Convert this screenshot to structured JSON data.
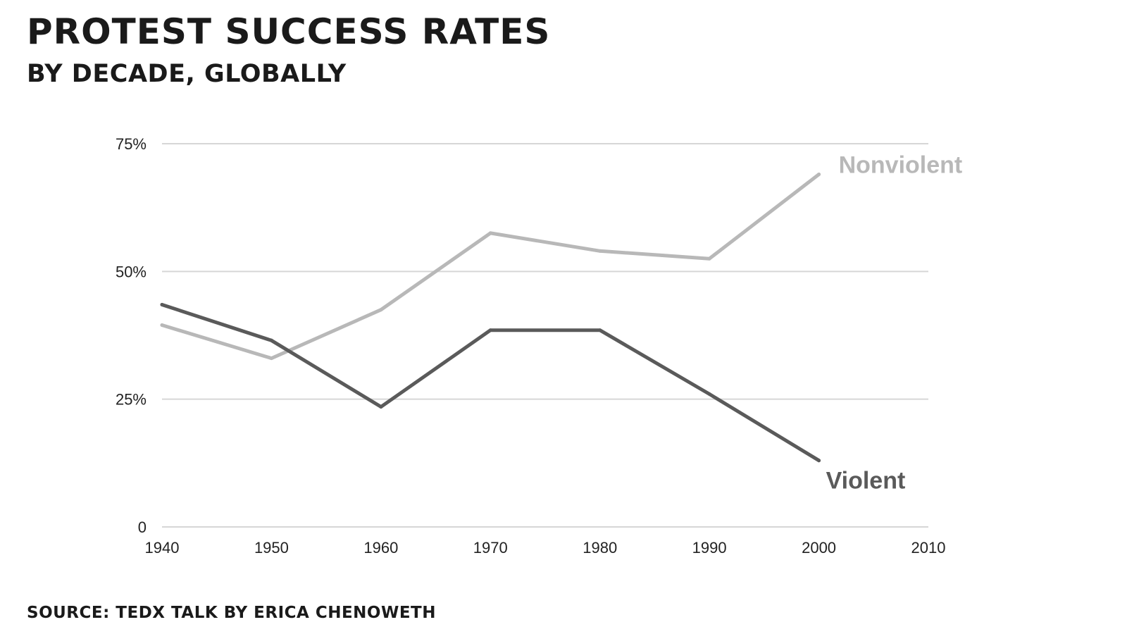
{
  "title": "PROTEST SUCCESS RATES",
  "subtitle": "BY DECADE, GLOBALLY",
  "source": "SOURCE: TEDX TALK BY ERICA CHENOWETH",
  "colors": {
    "nonviolent": "#b8b8b8",
    "violent": "#5a5a5a",
    "gridline": "#d6d6d6",
    "text": "#222222"
  },
  "chart_data": {
    "type": "line",
    "x": [
      1940,
      1950,
      1960,
      1970,
      1980,
      1990,
      2000
    ],
    "xlim": [
      1940,
      2010
    ],
    "ylim": [
      0,
      75
    ],
    "x_ticks": [
      {
        "value": 1940,
        "label": "1940"
      },
      {
        "value": 1950,
        "label": "1950"
      },
      {
        "value": 1960,
        "label": "1960"
      },
      {
        "value": 1970,
        "label": "1970"
      },
      {
        "value": 1980,
        "label": "1980"
      },
      {
        "value": 1990,
        "label": "1990"
      },
      {
        "value": 2000,
        "label": "2000"
      },
      {
        "value": 2010,
        "label": "2010"
      }
    ],
    "y_ticks": [
      {
        "value": 0,
        "label": "0"
      },
      {
        "value": 25,
        "label": "25%"
      },
      {
        "value": 50,
        "label": "50%"
      },
      {
        "value": 75,
        "label": "75%"
      }
    ],
    "grid": true,
    "series": [
      {
        "name": "Nonviolent",
        "color": "#b8b8b8",
        "values": [
          39.5,
          33,
          42.5,
          57.5,
          54,
          52.5,
          69
        ]
      },
      {
        "name": "Violent",
        "color": "#5a5a5a",
        "values": [
          43.5,
          36.5,
          23.5,
          38.5,
          38.5,
          26,
          13
        ]
      }
    ]
  }
}
